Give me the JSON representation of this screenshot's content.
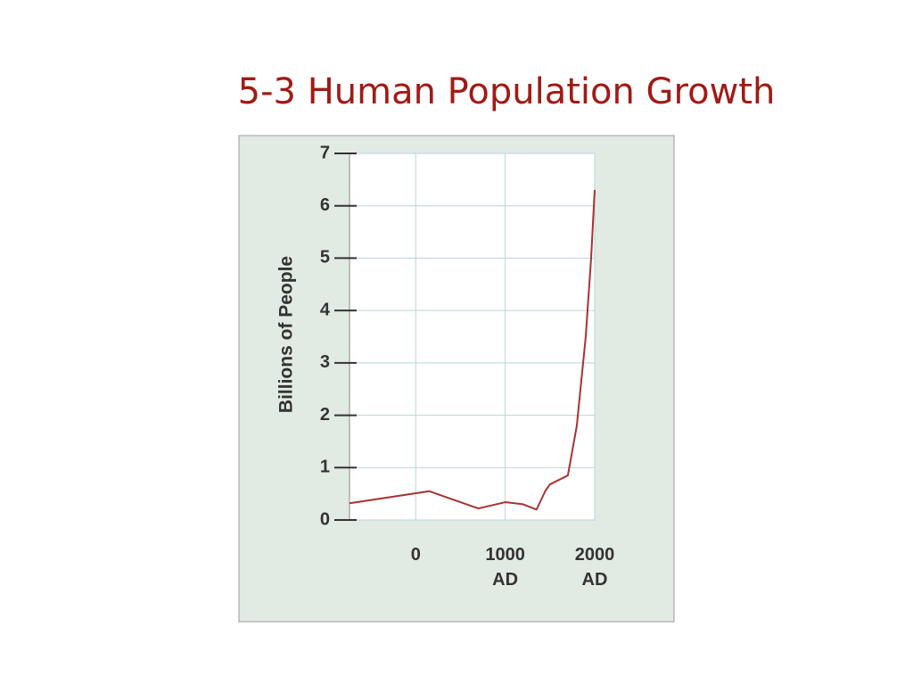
{
  "chart_data": {
    "type": "line",
    "title": "5-3 Human Population Growth",
    "ylabel": "Billions of People",
    "x": [
      -740,
      150,
      700,
      1000,
      1200,
      1350,
      1450,
      1500,
      1700,
      1800,
      1900,
      1960,
      2000
    ],
    "series": [
      {
        "color": "#a83232",
        "values": [
          0.32,
          0.55,
          0.22,
          0.34,
          0.3,
          0.2,
          0.56,
          0.68,
          0.85,
          1.8,
          3.5,
          5,
          6.3
        ]
      }
    ],
    "xlim": [
      -740,
      2000
    ],
    "xticks": [
      0,
      {
        "value": 1000,
        "label": "1000 AD"
      },
      {
        "value": 2000,
        "label": "2000 AD"
      }
    ],
    "ylim": [
      0,
      7
    ],
    "yticks": [
      0,
      1,
      2,
      3,
      4,
      5,
      6,
      7
    ],
    "grid": true
  }
}
